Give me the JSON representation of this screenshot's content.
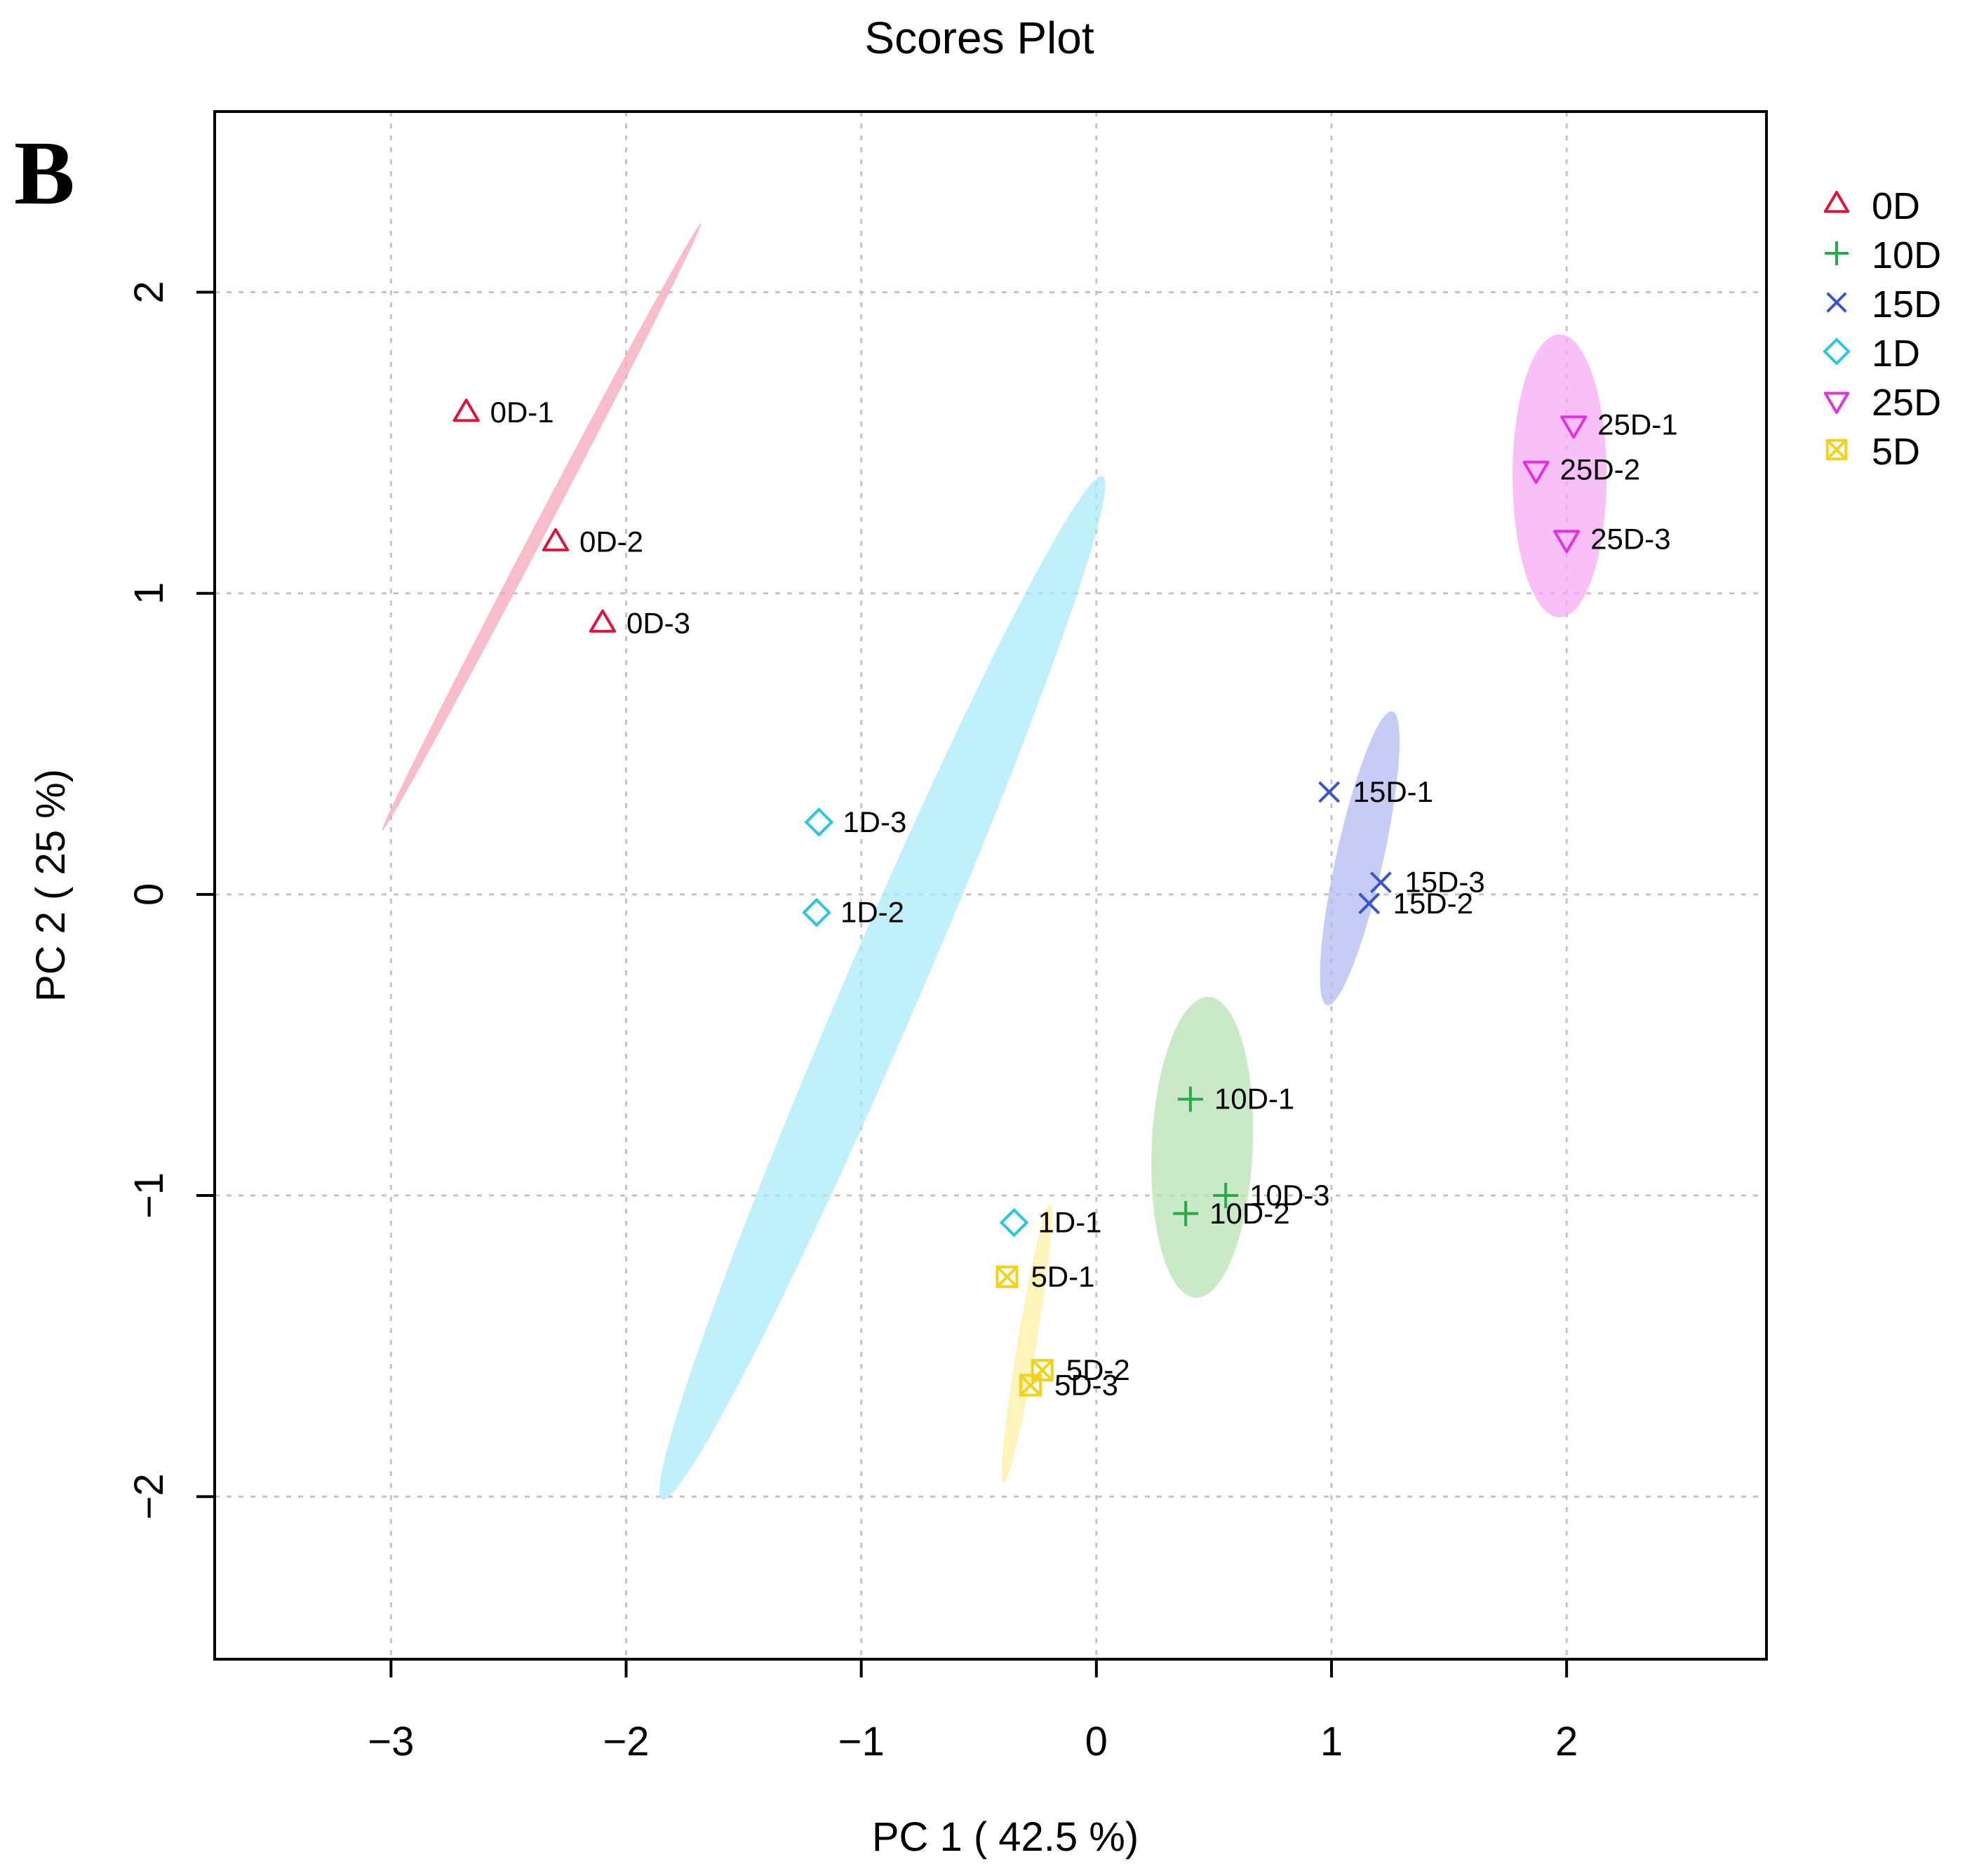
{
  "panel_label": "B",
  "colors": {
    "0D": "#dc143c",
    "10D": "#2aa84a",
    "15D": "#3a55c8",
    "1D": "#2ec4e6",
    "25D": "#e033e0",
    "5D": "#f2d21b",
    "0D_fill": "#f5a3b6",
    "10D_fill": "#b5e0b0",
    "15D_fill": "#b0b8f0",
    "1D_fill": "#a8ecfa",
    "25D_fill": "#f7a8f5",
    "5D_fill": "#fbf0a0"
  },
  "chart_data": {
    "type": "scatter",
    "title": "Scores Plot",
    "xlabel": "PC 1 ( 42.5 %)",
    "ylabel": "PC 2 ( 25 %)",
    "xlim": [
      -3.75,
      2.85
    ],
    "ylim": [
      -2.54,
      2.6
    ],
    "xticks": [
      -3,
      -2,
      -1,
      0,
      1,
      2
    ],
    "yticks": [
      -2,
      -1,
      0,
      1,
      2
    ],
    "xtick_labels": [
      "−3",
      "−2",
      "−1",
      "0",
      "1",
      "2"
    ],
    "ytick_labels": [
      "−2",
      "−1",
      "0",
      "1",
      "2"
    ],
    "grid": true,
    "legend_position": "right",
    "groups": [
      {
        "name": "0D",
        "marker": "triangle-up",
        "points": [
          {
            "label": "0D-1",
            "x": -2.68,
            "y": 1.6
          },
          {
            "label": "0D-2",
            "x": -2.3,
            "y": 1.17
          },
          {
            "label": "0D-3",
            "x": -2.1,
            "y": 0.9
          }
        ],
        "ellipse": {
          "cx": -2.36,
          "cy": 1.22,
          "major": 1.14,
          "minor": 0.028,
          "angle_deg": 27.7
        }
      },
      {
        "name": "10D",
        "marker": "plus",
        "points": [
          {
            "label": "10D-1",
            "x": 0.4,
            "y": -0.68
          },
          {
            "label": "10D-2",
            "x": 0.38,
            "y": -1.06
          },
          {
            "label": "10D-3",
            "x": 0.55,
            "y": -1.0
          }
        ],
        "ellipse": {
          "cx": 0.45,
          "cy": -0.84,
          "major": 0.5,
          "minor": 0.215,
          "angle_deg": 2.5
        }
      },
      {
        "name": "15D",
        "marker": "cross",
        "points": [
          {
            "label": "15D-1",
            "x": 0.99,
            "y": 0.34
          },
          {
            "label": "15D-2",
            "x": 1.16,
            "y": -0.03
          },
          {
            "label": "15D-3",
            "x": 1.21,
            "y": 0.04
          }
        ],
        "ellipse": {
          "cx": 1.12,
          "cy": 0.12,
          "major": 0.5,
          "minor": 0.1,
          "angle_deg": 12.5
        }
      },
      {
        "name": "1D",
        "marker": "diamond",
        "points": [
          {
            "label": "1D-1",
            "x": -0.35,
            "y": -1.09
          },
          {
            "label": "1D-2",
            "x": -1.19,
            "y": -0.06
          },
          {
            "label": "1D-3",
            "x": -1.18,
            "y": 0.24
          }
        ],
        "ellipse": {
          "cx": -0.91,
          "cy": -0.31,
          "major": 1.85,
          "minor": 0.16,
          "angle_deg": 23.3
        }
      },
      {
        "name": "25D",
        "marker": "triangle-down",
        "points": [
          {
            "label": "25D-1",
            "x": 2.03,
            "y": 1.56
          },
          {
            "label": "25D-2",
            "x": 1.87,
            "y": 1.41
          },
          {
            "label": "25D-3",
            "x": 2.0,
            "y": 1.18
          }
        ],
        "ellipse": {
          "cx": 1.97,
          "cy": 1.39,
          "major": 0.47,
          "minor": 0.2,
          "angle_deg": 0
        }
      },
      {
        "name": "5D",
        "marker": "boxed-x",
        "points": [
          {
            "label": "5D-1",
            "x": -0.38,
            "y": -1.27
          },
          {
            "label": "5D-2",
            "x": -0.23,
            "y": -1.58
          },
          {
            "label": "5D-3",
            "x": -0.28,
            "y": -1.63
          }
        ],
        "ellipse": {
          "cx": -0.295,
          "cy": -1.49,
          "major": 0.47,
          "minor": 0.04,
          "angle_deg": 9.5
        }
      }
    ]
  }
}
